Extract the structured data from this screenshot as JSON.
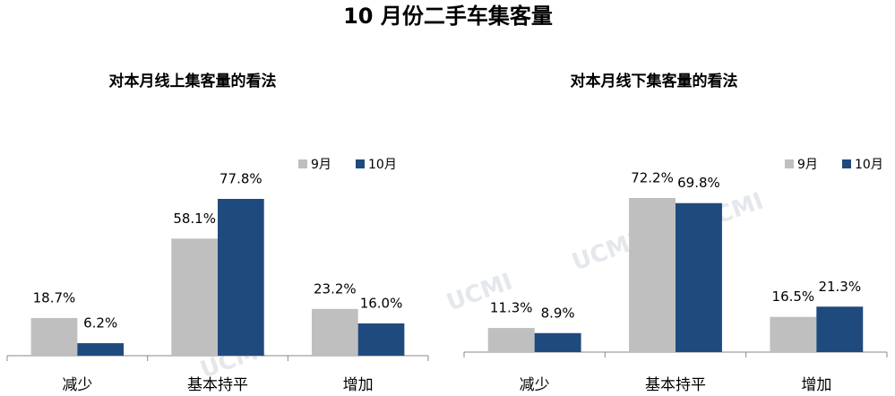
{
  "title": "10 月份二手车集客量",
  "watermark": "UCMI",
  "chart_data": [
    {
      "type": "bar",
      "title": "对本月线上集客量的看法",
      "categories": [
        "减少",
        "基本持平",
        "增加"
      ],
      "series": [
        {
          "name": "9月",
          "color": "#bfbfbf",
          "values": [
            18.7,
            58.1,
            23.2
          ],
          "value_labels": [
            "18.7%",
            "58.1%",
            "23.2%"
          ]
        },
        {
          "name": "10月",
          "color": "#1f4a7e",
          "values": [
            6.2,
            77.8,
            16.0
          ],
          "value_labels": [
            "6.2%",
            "77.8%",
            "16.0%"
          ]
        }
      ],
      "legend": "top-right"
    },
    {
      "type": "bar",
      "title": "对本月线下集客量的看法",
      "categories": [
        "减少",
        "基本持平",
        "增加"
      ],
      "series": [
        {
          "name": "9月",
          "color": "#bfbfbf",
          "values": [
            11.3,
            72.2,
            16.5
          ],
          "value_labels": [
            "11.3%",
            "72.2%",
            "16.5%"
          ]
        },
        {
          "name": "10月",
          "color": "#1f4a7e",
          "values": [
            8.9,
            69.8,
            21.3
          ],
          "value_labels": [
            "8.9%",
            "69.8%",
            "21.3%"
          ]
        }
      ],
      "legend": "top-right"
    }
  ]
}
